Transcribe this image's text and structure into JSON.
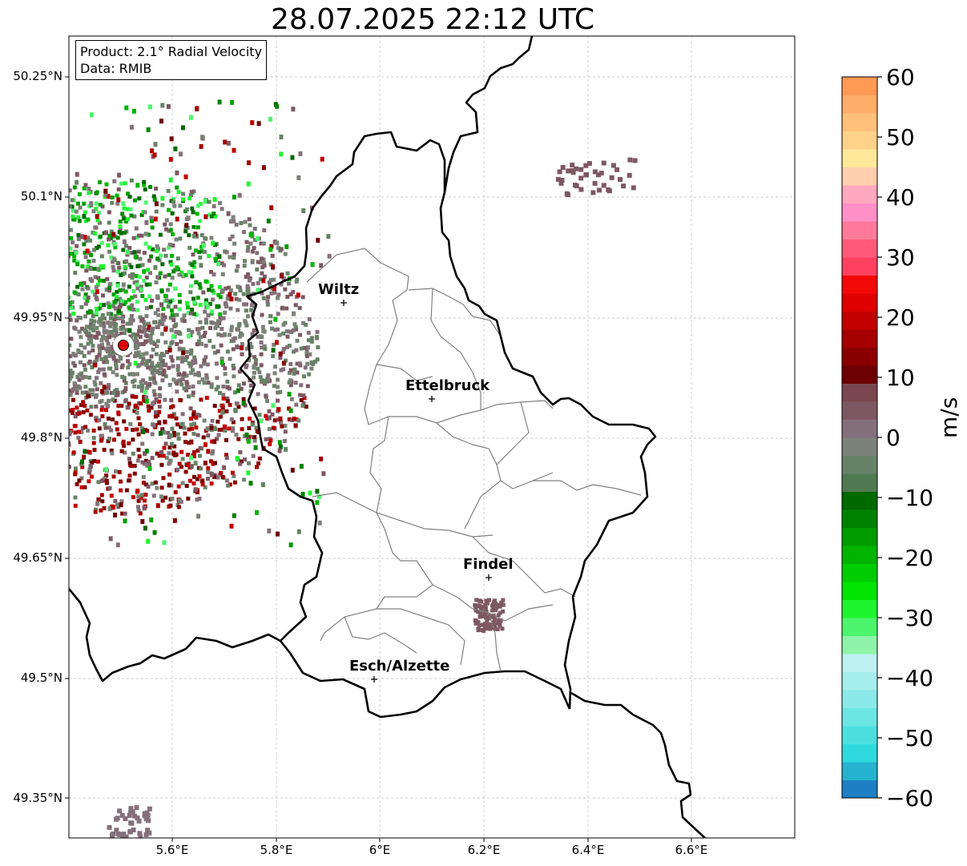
{
  "title": "28.07.2025 22:12 UTC",
  "info": {
    "product": "Product: 2.1° Radial Velocity",
    "data": "Data: RMIB"
  },
  "map": {
    "lat_ticks": [
      "50.25°N",
      "50.1°N",
      "49.95°N",
      "49.8°N",
      "49.65°N",
      "49.5°N",
      "49.35°N"
    ],
    "lon_ticks": [
      "5.6°E",
      "5.8°E",
      "6°E",
      "6.2°E",
      "6.4°E",
      "6.6°E"
    ],
    "cities": [
      {
        "name": "Wiltz"
      },
      {
        "name": "Ettelbruck"
      },
      {
        "name": "Findel"
      },
      {
        "name": "Esch/Alzette"
      }
    ],
    "radar_marker": "red-dot",
    "gridlines": true
  },
  "colorbar": {
    "unit": "m/s",
    "min": -60,
    "max": 60,
    "ticks": [
      "60",
      "50",
      "40",
      "30",
      "20",
      "10",
      "0",
      "−10",
      "−20",
      "−30",
      "−40",
      "−50",
      "−60"
    ],
    "colors_bottom_to_top": [
      "#1f7fc4",
      "#25b3cf",
      "#2fd9dd",
      "#4be0df",
      "#6be6e5",
      "#8be9e9",
      "#a6eded",
      "#bdf1f1",
      "#8ff3a9",
      "#4cf66c",
      "#1ff52e",
      "#00e400",
      "#00cc00",
      "#00b400",
      "#009c00",
      "#008200",
      "#006900",
      "#4f7a50",
      "#678367",
      "#7b8279",
      "#84707a",
      "#7d5863",
      "#7a4751",
      "#6d0000",
      "#8a0000",
      "#a60000",
      "#c20000",
      "#df0000",
      "#f30808",
      "#ff4060",
      "#ff5a78",
      "#ff7a9a",
      "#ff90c8",
      "#ffa8c0",
      "#ffcfb0",
      "#ffe89a",
      "#ffd28a",
      "#ffc07a",
      "#ffae6a",
      "#ff9a55"
    ]
  }
}
